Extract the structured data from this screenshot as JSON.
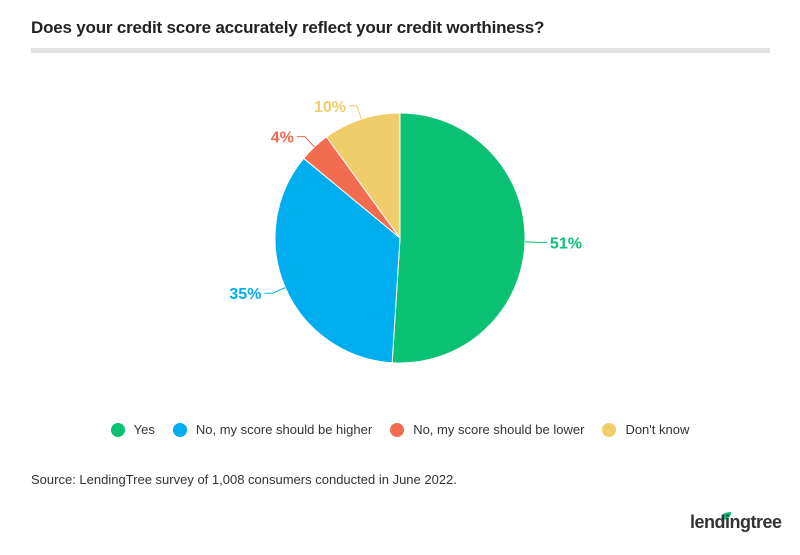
{
  "chart_data": {
    "type": "pie",
    "title": "Does your credit score accurately reflect your credit worthiness?",
    "slices": [
      {
        "label": "Yes",
        "value": 51,
        "display": "51%",
        "color": "#0bc174"
      },
      {
        "label": "No, my score should be higher",
        "value": 35,
        "display": "35%",
        "color": "#00adef"
      },
      {
        "label": "No, my score should be lower",
        "value": 4,
        "display": "4%",
        "color": "#f26c4f"
      },
      {
        "label": "Don't know",
        "value": 10,
        "display": "10%",
        "color": "#f0cd6b"
      }
    ],
    "legend_position": "bottom"
  },
  "source": "Source: LendingTree survey of 1,008 consumers conducted in June 2022.",
  "logo": "lendingtree"
}
